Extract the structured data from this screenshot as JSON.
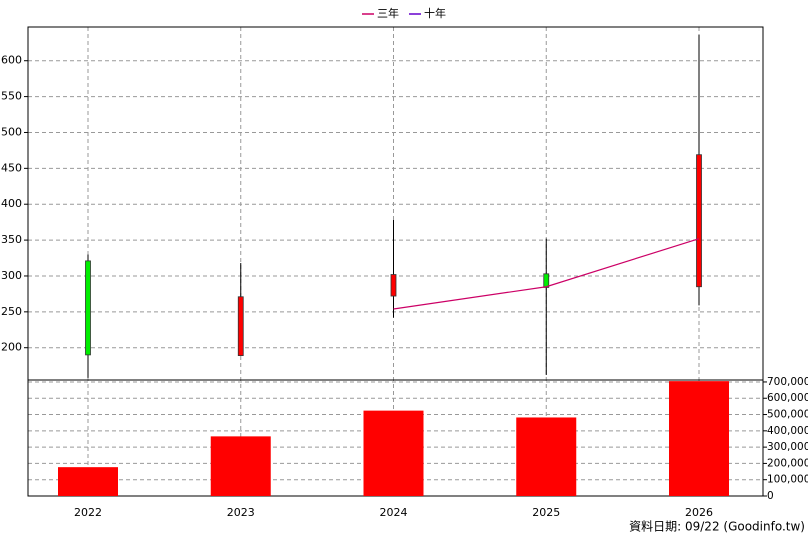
{
  "chart_data": {
    "type": "candlestick",
    "categories": [
      "2022",
      "2023",
      "2024",
      "2025",
      "2026"
    ],
    "open": [
      321,
      189,
      272,
      303,
      285
    ],
    "high": [
      330,
      318,
      378,
      352,
      636
    ],
    "low": [
      158,
      189,
      242,
      162,
      259
    ],
    "close": [
      190,
      271,
      302,
      284,
      469
    ],
    "up_color": "#ff0000",
    "down_color": "#00ee00",
    "series": [
      {
        "name": "三年",
        "color": "#cc0066",
        "values": [
          null,
          null,
          254,
          285,
          352
        ]
      },
      {
        "name": "十年",
        "color": "#6600cc",
        "values": [
          null,
          null,
          null,
          null,
          null
        ]
      }
    ],
    "volume": {
      "color": "#ff0000",
      "axis": "y2",
      "values": [
        177000,
        366000,
        524000,
        482000,
        705000
      ]
    },
    "ylim": [
      155,
      647
    ],
    "yticks": [
      200,
      250,
      300,
      350,
      400,
      450,
      500,
      550,
      600
    ],
    "y2lim": [
      0,
      712000
    ],
    "y2ticks": [
      0,
      {
        "value": 100000,
        "label": "100,000"
      },
      {
        "value": 200000,
        "label": "200,000"
      },
      {
        "value": 300000,
        "label": "300,000"
      },
      {
        "value": 400000,
        "label": "400,000"
      },
      {
        "value": 500000,
        "label": "500,000"
      },
      {
        "value": 600000,
        "label": "600,000"
      },
      {
        "value": 700000,
        "label": "700,000"
      }
    ],
    "grid": true,
    "footnote": "資料日期: 09/22  (Goodinfo.tw)"
  }
}
